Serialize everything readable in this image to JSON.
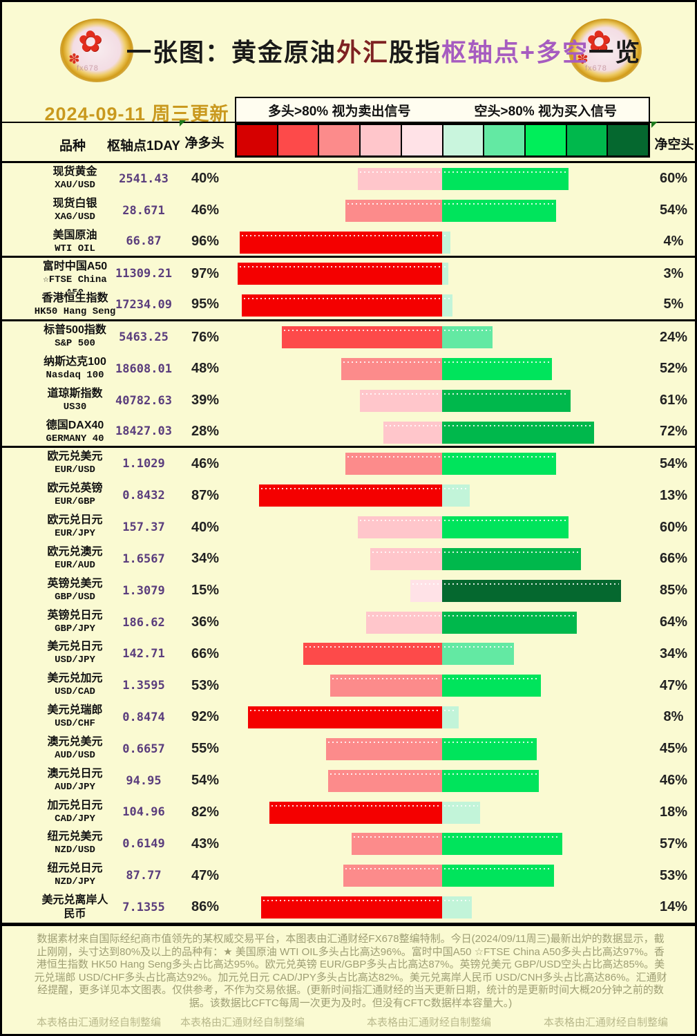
{
  "header": {
    "logo_glyph": "✿",
    "logo_bud_glyph": "✽",
    "logo_watermark": "fx678",
    "title_parts": [
      {
        "text": "一张图：黄金原油",
        "color": "#1a1a1a"
      },
      {
        "text": "外汇",
        "color": "#7e2222"
      },
      {
        "text": "股指",
        "color": "#1a1a1a"
      },
      {
        "text": "枢轴点+多空",
        "color": "#a65cc0"
      },
      {
        "text": "一览",
        "color": "#1a1a1a"
      }
    ],
    "date": "2024-09-11 周三更新",
    "legend": {
      "long_rule": "多头>80% 视为卖出信号",
      "short_rule": "空头>80% 视为买入信号"
    },
    "columns": {
      "instrument": "品种",
      "pivot": "枢轴点1DAY",
      "net_long": "净多头",
      "net_short": "净空头"
    }
  },
  "colors": {
    "background": "#fafad2",
    "legend_scale": [
      "#d60000",
      "#fd4a4a",
      "#fc8b8b",
      "#ffc6cb",
      "#ffe2e7",
      "#c9f5dd",
      "#63e9a3",
      "#00ee5a",
      "#00b84c",
      "#05682f"
    ],
    "bar_reds": [
      "#f40000",
      "#fd4a4a",
      "#fc8b8b",
      "#ffc6cb",
      "#ffe2e7"
    ],
    "bar_greens": [
      "#c2f4d9",
      "#63e9a3",
      "#00e45c",
      "#00b84c",
      "#05682f"
    ],
    "pivot_text": "#5a3d7d",
    "date_text": "#c9991e",
    "title_maroon": "#7e2222",
    "title_purple": "#a65cc0",
    "footer_text": "#9e9e74",
    "credit_text": "#b9b98c"
  },
  "chart_data": {
    "type": "bar",
    "orientation": "horizontal-diverging",
    "unit": "percent",
    "title": "一张图：黄金原油外汇股指枢轴点+多空一览",
    "series_labels": [
      "净多头",
      "净空头"
    ],
    "axis_note": "red bars grow left from center = net long %, green bars grow right = net short %",
    "rows": [
      {
        "name": "现货黄金",
        "code": "XAU/USD",
        "pivot": "2541.43",
        "long": 40,
        "short": 60,
        "divider": false
      },
      {
        "name": "现货白银",
        "code": "XAG/USD",
        "pivot": "28.671",
        "long": 46,
        "short": 54,
        "divider": false
      },
      {
        "name": "美国原油",
        "code": "WTI OIL",
        "pivot": "66.87",
        "long": 96,
        "short": 4,
        "divider": true
      },
      {
        "name": "富时中国A50",
        "code": "☆FTSE China A50",
        "pivot": "11309.21",
        "long": 97,
        "short": 3,
        "divider": false
      },
      {
        "name": "香港恒生指数",
        "code": "HK50 Hang Seng",
        "pivot": "17234.09",
        "long": 95,
        "short": 5,
        "divider": true
      },
      {
        "name": "标普500指数",
        "code": "S&P 500",
        "pivot": "5463.25",
        "long": 76,
        "short": 24,
        "divider": false
      },
      {
        "name": "纳斯达克100",
        "code": "Nasdaq 100",
        "pivot": "18608.01",
        "long": 48,
        "short": 52,
        "divider": false
      },
      {
        "name": "道琼斯指数",
        "code": "US30",
        "pivot": "40782.63",
        "long": 39,
        "short": 61,
        "divider": false
      },
      {
        "name": "德国DAX40",
        "code": "GERMANY 40",
        "pivot": "18427.03",
        "long": 28,
        "short": 72,
        "divider": true
      },
      {
        "name": "欧元兑美元",
        "code": "EUR/USD",
        "pivot": "1.1029",
        "long": 46,
        "short": 54,
        "divider": false
      },
      {
        "name": "欧元兑英镑",
        "code": "EUR/GBP",
        "pivot": "0.8432",
        "long": 87,
        "short": 13,
        "divider": false
      },
      {
        "name": "欧元兑日元",
        "code": "EUR/JPY",
        "pivot": "157.37",
        "long": 40,
        "short": 60,
        "divider": false
      },
      {
        "name": "欧元兑澳元",
        "code": "EUR/AUD",
        "pivot": "1.6567",
        "long": 34,
        "short": 66,
        "divider": false
      },
      {
        "name": "英镑兑美元",
        "code": "GBP/USD",
        "pivot": "1.3079",
        "long": 15,
        "short": 85,
        "divider": false
      },
      {
        "name": "英镑兑日元",
        "code": "GBP/JPY",
        "pivot": "186.62",
        "long": 36,
        "short": 64,
        "divider": false
      },
      {
        "name": "美元兑日元",
        "code": "USD/JPY",
        "pivot": "142.71",
        "long": 66,
        "short": 34,
        "divider": false
      },
      {
        "name": "美元兑加元",
        "code": "USD/CAD",
        "pivot": "1.3595",
        "long": 53,
        "short": 47,
        "divider": false
      },
      {
        "name": "美元兑瑞郎",
        "code": "USD/CHF",
        "pivot": "0.8474",
        "long": 92,
        "short": 8,
        "divider": false
      },
      {
        "name": "澳元兑美元",
        "code": "AUD/USD",
        "pivot": "0.6657",
        "long": 55,
        "short": 45,
        "divider": false
      },
      {
        "name": "澳元兑日元",
        "code": "AUD/JPY",
        "pivot": "94.95",
        "long": 54,
        "short": 46,
        "divider": false
      },
      {
        "name": "加元兑日元",
        "code": "CAD/JPY",
        "pivot": "104.96",
        "long": 82,
        "short": 18,
        "divider": false
      },
      {
        "name": "纽元兑美元",
        "code": "NZD/USD",
        "pivot": "0.6149",
        "long": 43,
        "short": 57,
        "divider": false
      },
      {
        "name": "纽元兑日元",
        "code": "NZD/JPY",
        "pivot": "87.77",
        "long": 47,
        "short": 53,
        "divider": false
      },
      {
        "name": "美元兑离岸人民币",
        "code": "",
        "pivot": "7.1355",
        "long": 86,
        "short": 14,
        "divider": false
      }
    ]
  },
  "footer": {
    "paragraph": "数据素材来自国际经纪商市值领先的某权威交易平台，本图表由汇通财经FX678整编特制。今日(2024/09/11周三)最新出炉的数据显示，截止刚刚，头寸达到80%及以上的品种有：★ 美国原油 WTI OIL多头占比高达96%。富时中国A50 ☆FTSE China A50多头占比高达97%。香港恒生指数 HK50 Hang Seng多头占比高达95%。欧元兑英镑 EUR/GBP多头占比高达87%。英镑兑美元 GBP/USD空头占比高达85%。美元兑瑞郎 USD/CHF多头占比高达92%。加元兑日元 CAD/JPY多头占比高达82%。美元兑离岸人民币 USD/CNH多头占比高达86%。汇通财经提醒，更多详见本文图表。仅供参考，不作为交易依据。(更新时间指汇通财经的当天更新日期，统计的是更新时间大概20分钟之前的数据。该数据比CFTC每周一次更为及时。但没有CFTC数据样本容量大。)",
    "credits": [
      "本表格由汇通财经自制整编",
      "本表格由汇通财经自制整编",
      "本表格由汇通财经自制整编",
      "本表格由汇通财经自制整编"
    ]
  }
}
